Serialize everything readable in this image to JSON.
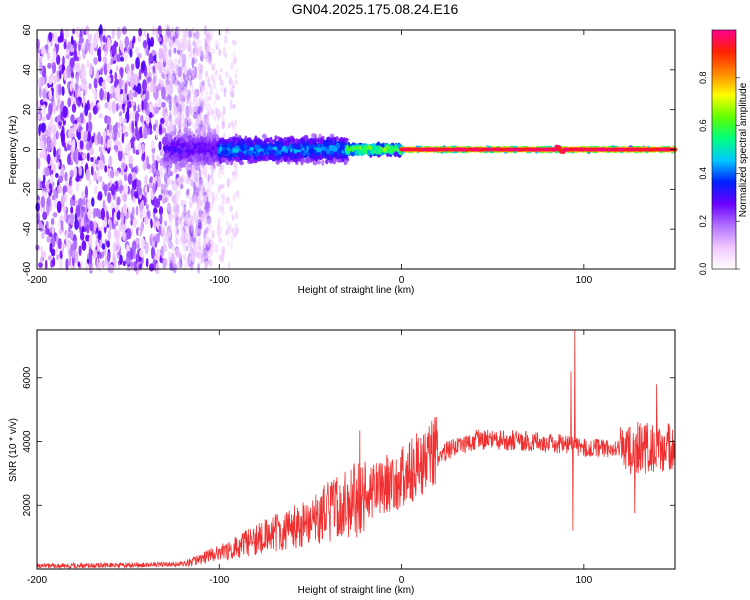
{
  "title": "GN04.2025.175.08.24.E16",
  "chart_data": [
    {
      "type": "heatmap",
      "title": "",
      "xlabel": "Height of straight line (km)",
      "ylabel": "Frequency (Hz)",
      "xlim": [
        -200,
        150
      ],
      "ylim": [
        -60,
        60
      ],
      "xticks": [
        -200,
        -100,
        0,
        100
      ],
      "yticks": [
        60,
        40,
        20,
        0,
        -20,
        -40,
        -60
      ],
      "colorbar": {
        "label": "Normalized spectral amplitude",
        "range": [
          0,
          1
        ],
        "ticks": [
          0.0,
          0.2,
          0.4,
          0.6,
          0.8
        ],
        "colors": [
          "#ffffff",
          "#f0c8ff",
          "#b070ff",
          "#6a00ff",
          "#0022ff",
          "#00c8ff",
          "#00ff80",
          "#60ff00",
          "#ffff00",
          "#ff8800",
          "#ff2200",
          "#ff0090"
        ]
      },
      "regions": [
        {
          "x_range": [
            -200,
            -130
          ],
          "description_level": "scattered low amplitude 0.05-0.3 across full band"
        },
        {
          "x_range": [
            -130,
            -100
          ],
          "freq_half_width": 12,
          "level": 0.3
        },
        {
          "x_range": [
            -100,
            -30
          ],
          "freq_half_width": 8,
          "level": 0.45
        },
        {
          "x_range": [
            -30,
            0
          ],
          "freq_half_width": 3,
          "level": 0.7
        },
        {
          "x_range": [
            0,
            150
          ],
          "freq_half_width": 1.5,
          "level": 1.0
        }
      ]
    },
    {
      "type": "line",
      "title": "",
      "xlabel": "Height of straight line (km)",
      "ylabel": "SNR (10 * v/v)",
      "xlim": [
        -200,
        150
      ],
      "ylim": [
        0,
        7500
      ],
      "xticks": [
        -200,
        -100,
        0,
        100
      ],
      "yticks": [
        2000,
        4000,
        6000
      ],
      "color": "#f03030",
      "envelope": {
        "x": [
          -200,
          -150,
          -120,
          -100,
          -80,
          -60,
          -40,
          -20,
          0,
          20,
          40,
          60,
          80,
          94,
          96,
          100,
          120,
          130,
          140,
          150
        ],
        "y": [
          100,
          120,
          150,
          500,
          900,
          1300,
          1800,
          2300,
          2900,
          3600,
          4050,
          4050,
          3950,
          3900,
          3800,
          3800,
          3750,
          3850,
          3800,
          3700
        ]
      },
      "spikes": [
        {
          "x": -23,
          "y": 4350
        },
        {
          "x": 93,
          "y": 6200
        },
        {
          "x": 95,
          "y": 7500
        },
        {
          "x": 94,
          "y": 1200
        },
        {
          "x": 128,
          "y": 5700
        },
        {
          "x": 140,
          "y": 5800
        },
        {
          "x": 128,
          "y": 1750
        }
      ]
    }
  ]
}
